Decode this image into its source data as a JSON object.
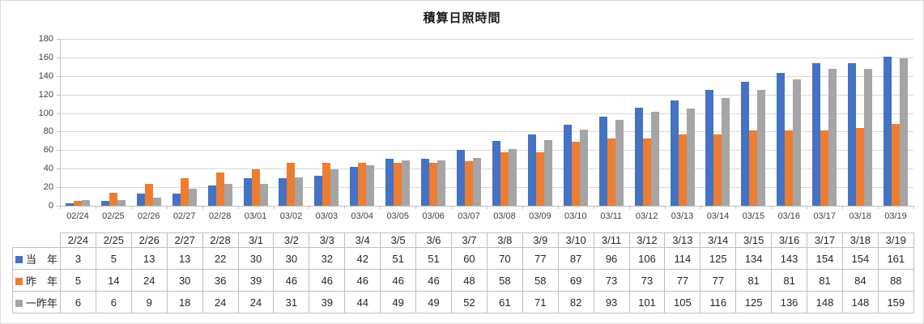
{
  "title": "積算日照時間",
  "colors": {
    "series_this_year": "#4472C4",
    "series_last_year": "#ED7D31",
    "series_two_years_ago": "#A5A5A5",
    "gridline": "#D9D9D9",
    "axis_line": "#BFBFBF",
    "table_border": "#BFBFBF"
  },
  "chart_data": {
    "type": "bar",
    "title": "積算日照時間",
    "categories": [
      "02/24",
      "02/25",
      "02/26",
      "02/27",
      "02/28",
      "03/01",
      "03/02",
      "03/03",
      "03/04",
      "03/05",
      "03/06",
      "03/07",
      "03/08",
      "03/09",
      "03/10",
      "03/11",
      "03/12",
      "03/13",
      "03/14",
      "03/15",
      "03/16",
      "03/17",
      "03/18",
      "03/19"
    ],
    "table_categories": [
      "2/24",
      "2/25",
      "2/26",
      "2/27",
      "2/28",
      "3/1",
      "3/2",
      "3/3",
      "3/4",
      "3/5",
      "3/6",
      "3/7",
      "3/8",
      "3/9",
      "3/10",
      "3/11",
      "3/12",
      "3/13",
      "3/14",
      "3/15",
      "3/16",
      "3/17",
      "3/18",
      "3/19"
    ],
    "series": [
      {
        "name": "当　年",
        "color": "#4472C4",
        "values": [
          3,
          5,
          13,
          13,
          22,
          30,
          30,
          32,
          42,
          51,
          51,
          60,
          70,
          77,
          87,
          96,
          106,
          114,
          125,
          134,
          143,
          154,
          154,
          161
        ]
      },
      {
        "name": "昨　年",
        "color": "#ED7D31",
        "values": [
          5,
          14,
          24,
          30,
          36,
          39,
          46,
          46,
          46,
          46,
          46,
          48,
          58,
          58,
          69,
          73,
          73,
          77,
          77,
          81,
          81,
          81,
          84,
          88
        ]
      },
      {
        "name": "一昨年",
        "color": "#A5A5A5",
        "values": [
          6,
          6,
          9,
          18,
          24,
          24,
          31,
          39,
          44,
          49,
          49,
          52,
          61,
          71,
          82,
          93,
          101,
          105,
          116,
          125,
          136,
          148,
          148,
          159
        ]
      }
    ],
    "ylim": [
      0,
      180
    ],
    "ytick_step": 20,
    "yticks": [
      0,
      20,
      40,
      60,
      80,
      100,
      120,
      140,
      160,
      180
    ],
    "grid": true,
    "legend_position": "data-table-left"
  }
}
